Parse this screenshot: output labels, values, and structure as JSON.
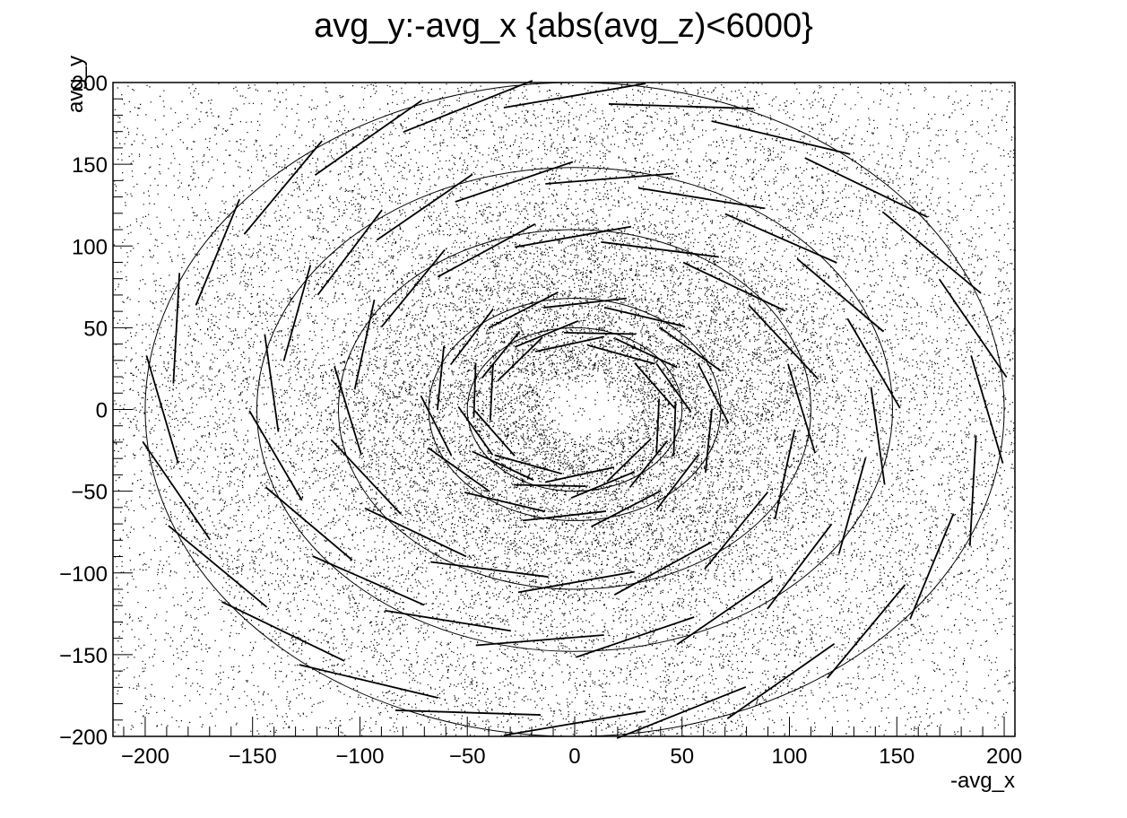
{
  "chart_data": {
    "type": "scatter",
    "title": "avg_y:-avg_x {abs(avg_z)<6000}",
    "xlabel": "-avg_x",
    "ylabel": "avg_y",
    "xlim": [
      -215,
      205
    ],
    "ylim": [
      -200,
      200
    ],
    "x_ticks": [
      -200,
      -150,
      -100,
      -50,
      0,
      50,
      100,
      150,
      200
    ],
    "y_ticks": [
      -200,
      -150,
      -100,
      -50,
      0,
      50,
      100,
      150,
      200
    ],
    "x_tick_labels": [
      "−200",
      "−150",
      "−100",
      "−50",
      "0",
      "50",
      "100",
      "150",
      "200"
    ],
    "y_tick_labels": [
      "−200",
      "−150",
      "−100",
      "−50",
      "0",
      "50",
      "100",
      "150",
      "200"
    ],
    "grid": false,
    "legend": "none",
    "marker_color": "#000000",
    "ring_radii": [
      200,
      148,
      110,
      68,
      50
    ],
    "ring_segments": [
      24,
      20,
      16,
      14,
      12
    ],
    "inner_ring_radius": 40,
    "inner_ring_segments": 10,
    "background_points": 9000,
    "ring_band_points": 22000
  }
}
